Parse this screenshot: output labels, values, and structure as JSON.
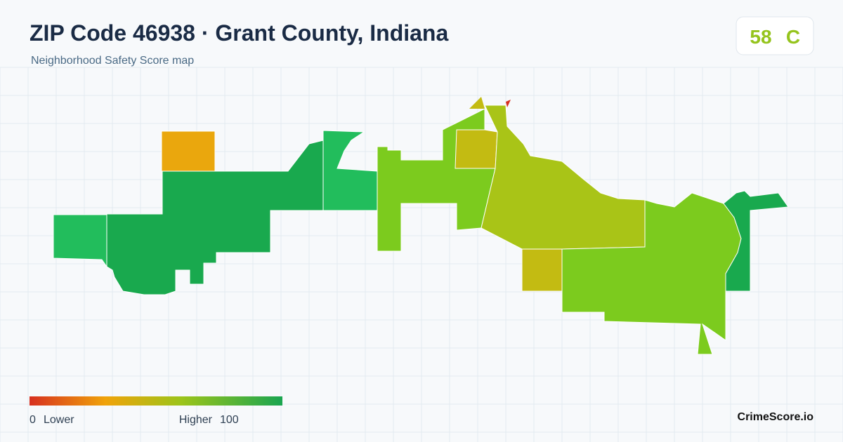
{
  "header": {
    "title": "ZIP Code 46938 · Grant County, Indiana",
    "subtitle": "Neighborhood Safety Score map"
  },
  "score": {
    "value": 58,
    "grade": "C"
  },
  "legend": {
    "min": 0,
    "min_label": "Lower",
    "max_label": "Higher",
    "max": 100
  },
  "brand": "CrimeScore.io"
}
